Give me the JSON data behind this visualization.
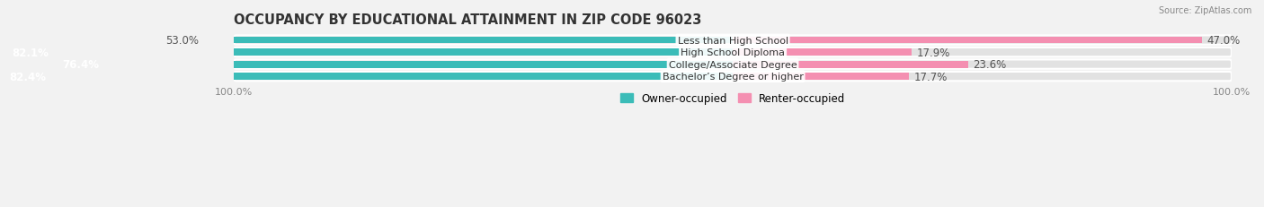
{
  "title": "OCCUPANCY BY EDUCATIONAL ATTAINMENT IN ZIP CODE 96023",
  "source": "Source: ZipAtlas.com",
  "categories": [
    "Less than High School",
    "High School Diploma",
    "College/Associate Degree",
    "Bachelor’s Degree or higher"
  ],
  "owner_pct": [
    53.0,
    82.1,
    76.4,
    82.4
  ],
  "renter_pct": [
    47.0,
    17.9,
    23.6,
    17.7
  ],
  "owner_color": "#3bbcb8",
  "renter_color": "#f48fb1",
  "bg_color": "#f2f2f2",
  "bar_bg_color": "#e2e2e2",
  "title_fontsize": 10.5,
  "label_fontsize": 8.5,
  "tick_fontsize": 8,
  "bar_height": 0.58,
  "figsize": [
    14.06,
    2.32
  ],
  "dpi": 100
}
